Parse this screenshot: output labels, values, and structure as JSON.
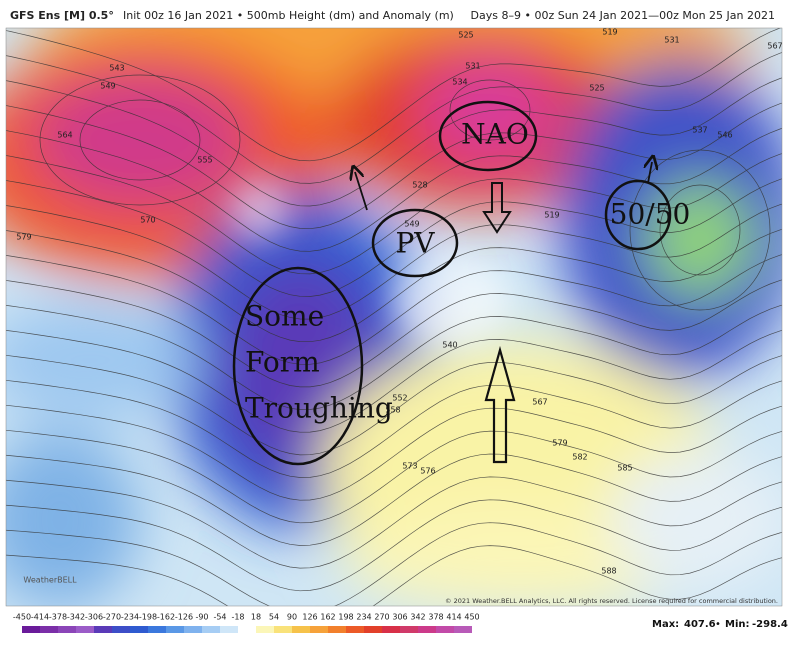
{
  "header": {
    "model": "GFS Ens [M] 0.5°",
    "init": "Init 00z 16 Jan 2021 • 500mb Height (dm) and Anomaly (m)",
    "valid": "Days 8–9 • 00z Sun 24 Jan 2021—00z Mon 25 Jan 2021"
  },
  "annotations": {
    "nao": "NAO",
    "pv": "PV",
    "fifty_fifty": "50/50",
    "troughing": [
      "Some",
      "Form",
      "Troughing"
    ]
  },
  "contour_labels": [
    543,
    549,
    564,
    570,
    579,
    555,
    525,
    531,
    534,
    519,
    531,
    537,
    546,
    567,
    525,
    528,
    549,
    519,
    540,
    552,
    558,
    573,
    576,
    567,
    579,
    582,
    585,
    588
  ],
  "colorbar": {
    "labels": [
      -450,
      -414,
      -378,
      -342,
      -306,
      -270,
      -234,
      -198,
      -162,
      -126,
      -90,
      -54,
      -18,
      18,
      54,
      90,
      126,
      162,
      198,
      234,
      270,
      306,
      342,
      378,
      414,
      450
    ]
  },
  "stats": {
    "max_label": "Max:",
    "max": 407.6,
    "min_label": "Min:",
    "min": -298.4
  },
  "copyright": "© 2021 Weather.BELL Analytics, LLC. All rights reserved. License required for commercial distribution.",
  "logo": "WeatherBELL"
}
